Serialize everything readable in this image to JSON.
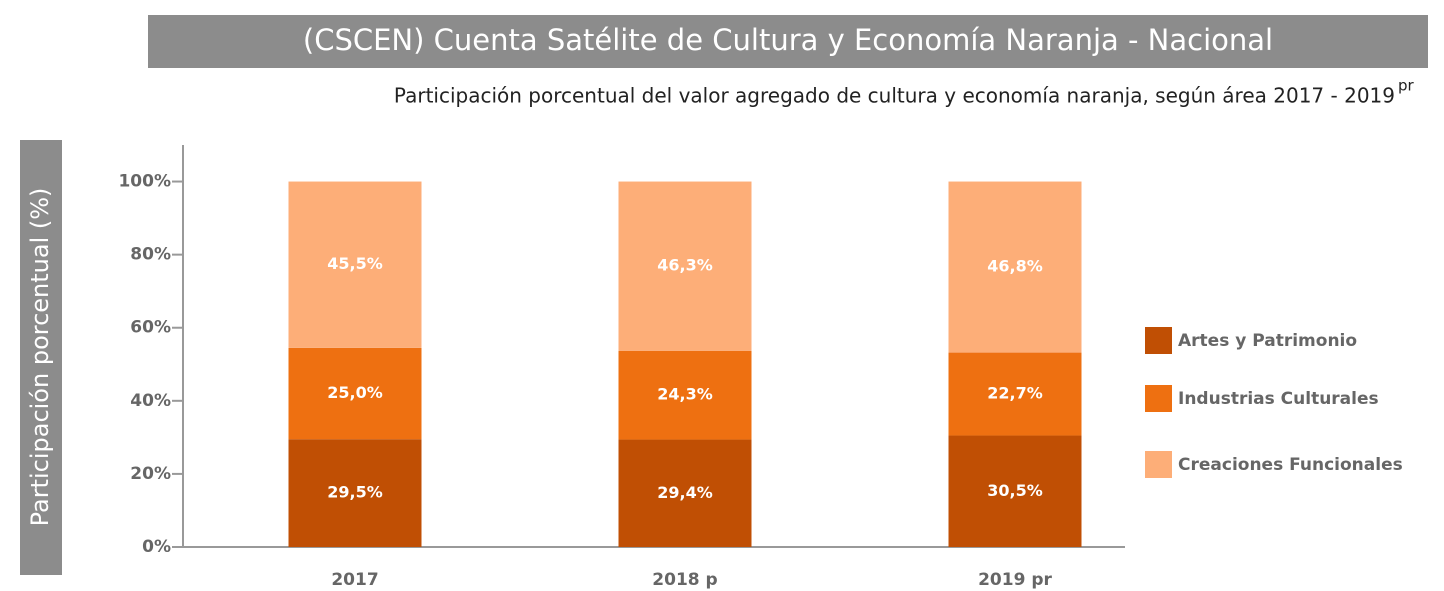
{
  "chart_data": {
    "type": "stacked_bar",
    "title": "(CSCEN) Cuenta Satélite de Cultura y Economía Naranja - Nacional",
    "subtitle": "Participación porcentual del valor agregado de cultura y economía naranja, según área 2017 - 2019",
    "subtitle_sup": "pr",
    "y_label": "Participación porcentual (%)",
    "categories": [
      "2017",
      "2018 p",
      "2019 pr"
    ],
    "series": [
      {
        "name": "Artes y Patrimonio",
        "color": "#c04f04",
        "values": [
          29.5,
          29.4,
          30.5
        ],
        "value_labels": [
          "29,5%",
          "29,4%",
          "30,5%"
        ]
      },
      {
        "name": "Industrias Culturales",
        "color": "#ee7011",
        "values": [
          25.0,
          24.3,
          22.7
        ],
        "value_labels": [
          "25,0%",
          "24,3%",
          "22,7%"
        ]
      },
      {
        "name": "Creaciones Funcionales",
        "color": "#fdae78",
        "values": [
          45.5,
          46.3,
          46.8
        ],
        "value_labels": [
          "45,5%",
          "46,3%",
          "46,8%"
        ]
      }
    ],
    "ylim": [
      0,
      110
    ],
    "yticks": [
      {
        "value": 0,
        "label": "0%"
      },
      {
        "value": 20,
        "label": "20%"
      },
      {
        "value": 40,
        "label": "40%"
      },
      {
        "value": 60,
        "label": "60%"
      },
      {
        "value": 80,
        "label": "80%"
      },
      {
        "value": 100,
        "label": "100%"
      }
    ],
    "legend": "right"
  }
}
